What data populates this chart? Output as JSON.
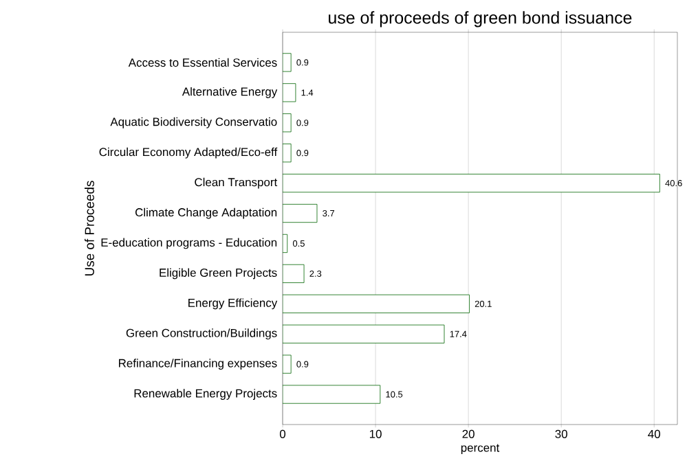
{
  "chart_data": {
    "type": "bar",
    "orientation": "horizontal",
    "title": "use of proceeds of green bond issuance",
    "xlabel": "percent",
    "ylabel": "Use of Proceeds",
    "categories": [
      "Access to Essential Services",
      "Alternative Energy",
      "Aquatic Biodiversity Conservatio",
      "Circular Economy Adapted/Eco-eff",
      "Clean Transport",
      "Climate Change Adaptation",
      "E-education programs - Education",
      "Eligible Green Projects",
      "Energy Efficiency",
      "Green Construction/Buildings",
      "Refinance/Financing expenses",
      "Renewable Energy Projects"
    ],
    "values": [
      0.9,
      1.4,
      0.9,
      0.9,
      40.6,
      3.7,
      0.5,
      2.3,
      20.1,
      17.4,
      0.9,
      10.5
    ],
    "color": "#006400",
    "xlim": [
      0,
      42.5
    ],
    "xticks": [
      0,
      10,
      20,
      30,
      40
    ],
    "grid": "x",
    "data_labels": true
  }
}
